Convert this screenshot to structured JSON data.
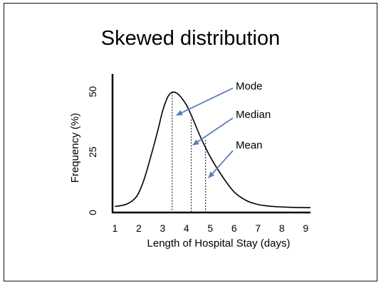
{
  "slide": {
    "title": "Skewed distribution"
  },
  "chart_data": {
    "type": "line",
    "title": "Skewed distribution",
    "xlabel": "Length of Hospital Stay (days)",
    "ylabel": "Frequency (%)",
    "xlim": [
      0.9,
      9.2
    ],
    "ylim": [
      0,
      50
    ],
    "x_ticks": [
      1,
      2,
      3,
      4,
      5,
      6,
      7,
      8,
      9
    ],
    "y_ticks": [
      0,
      25,
      50
    ],
    "grid": false,
    "series": [
      {
        "x": [
          1,
          1.5,
          1.9,
          2.2,
          2.5,
          2.8,
          3.0,
          3.2,
          3.35,
          3.5,
          3.7,
          4.0,
          4.3,
          4.6,
          5.0,
          5.5,
          6.0,
          6.5,
          7.0,
          7.5,
          8.0,
          8.5,
          9.0,
          9.2
        ],
        "y": [
          2.5,
          3.5,
          6.5,
          13.0,
          23.0,
          34.0,
          42.0,
          47.5,
          49.5,
          49.8,
          48.5,
          44.5,
          38.0,
          31.0,
          23.0,
          15.0,
          8.5,
          5.0,
          3.3,
          2.6,
          2.3,
          2.1,
          2.0,
          2.0
        ]
      }
    ],
    "annotations": [
      {
        "label": "Mode",
        "x": 3.4,
        "y": 49.8
      },
      {
        "label": "Median",
        "x": 4.2,
        "y": 38.5
      },
      {
        "label": "Mean",
        "x": 4.8,
        "y": 30.0
      }
    ],
    "colors": {
      "curve": "#000000",
      "arrow": "#5a7fb5",
      "axis": "#000000"
    }
  }
}
